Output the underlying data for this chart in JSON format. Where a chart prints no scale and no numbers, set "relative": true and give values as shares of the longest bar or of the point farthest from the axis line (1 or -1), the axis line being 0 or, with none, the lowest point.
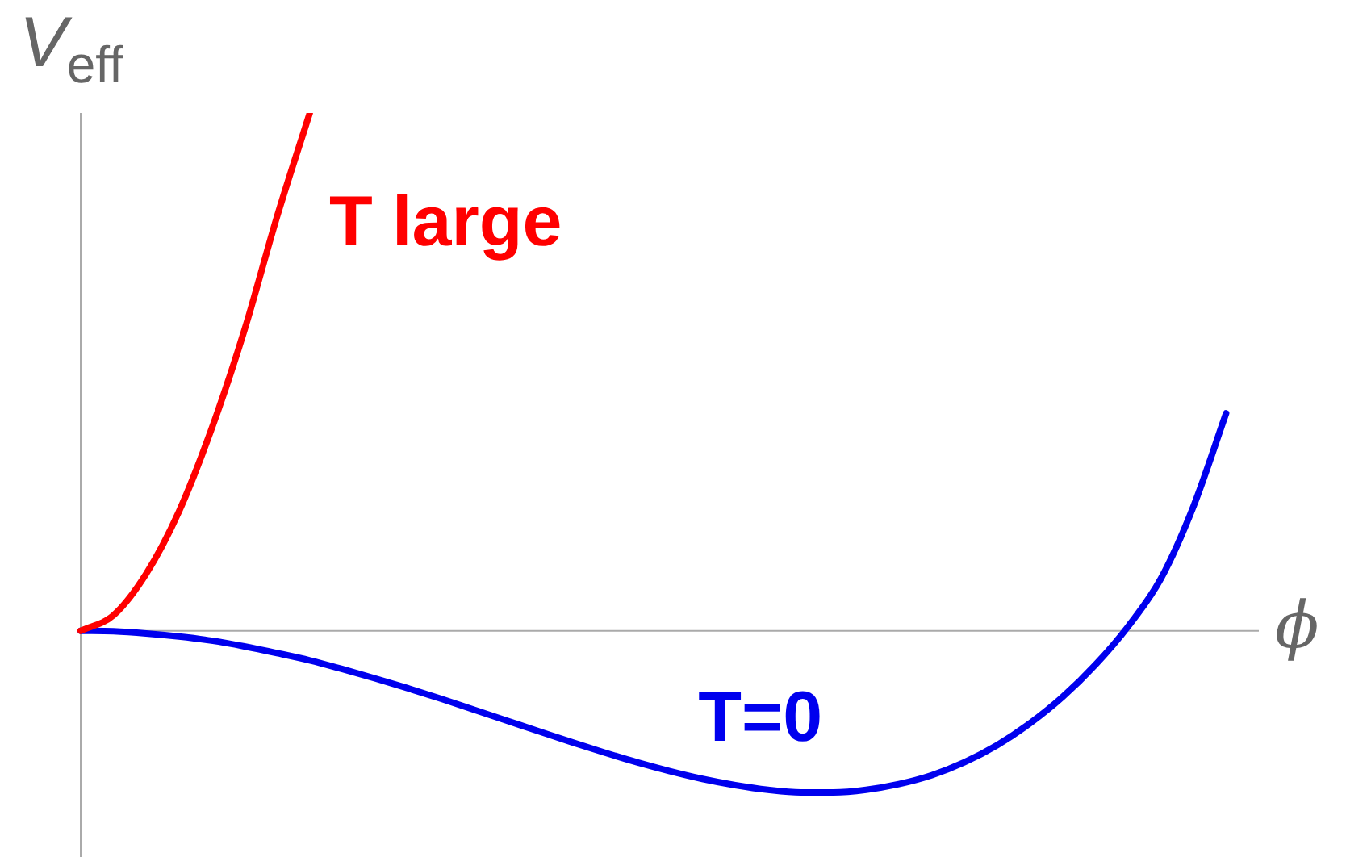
{
  "chart_data": {
    "type": "line",
    "relative": true,
    "xlabel": "ϕ",
    "ylabel": "V$_{eff}$",
    "legend": false,
    "marker": "none",
    "categories": [
      null,
      null,
      null,
      null,
      null,
      null,
      null,
      null,
      null,
      null,
      null,
      null,
      null,
      null,
      null,
      null,
      null,
      null,
      null,
      null,
      null,
      null,
      null,
      null,
      null,
      null,
      null,
      null,
      null,
      null,
      null,
      null,
      null,
      null,
      null,
      null,
      null
    ],
    "series": [
      {
        "name": "T large",
        "color": "#ff0000",
        "values": [
          0,
          0.03,
          0.11,
          0.23,
          0.39,
          0.58,
          0.8,
          1,
          null,
          null,
          null,
          null,
          null,
          null,
          null,
          null,
          null,
          null,
          null,
          null,
          null,
          null,
          null,
          null,
          null,
          null,
          null,
          null,
          null,
          null,
          null,
          null,
          null,
          null,
          null,
          null,
          null
        ]
      },
      {
        "name": "T=0",
        "color": "#0000ee",
        "values": [
          0,
          -0.001,
          -0.005,
          -0.011,
          -0.019,
          -0.03,
          -0.043,
          -0.057,
          -0.074,
          -0.092,
          -0.111,
          -0.131,
          -0.152,
          -0.173,
          -0.194,
          -0.215,
          -0.235,
          -0.254,
          -0.271,
          -0.286,
          -0.298,
          -0.307,
          -0.312,
          -0.312,
          -0.307,
          -0.296,
          -0.279,
          -0.254,
          -0.221,
          -0.179,
          -0.128,
          -0.066,
          0.008,
          0.1,
          0.24,
          0.42,
          null
        ]
      }
    ]
  }
}
